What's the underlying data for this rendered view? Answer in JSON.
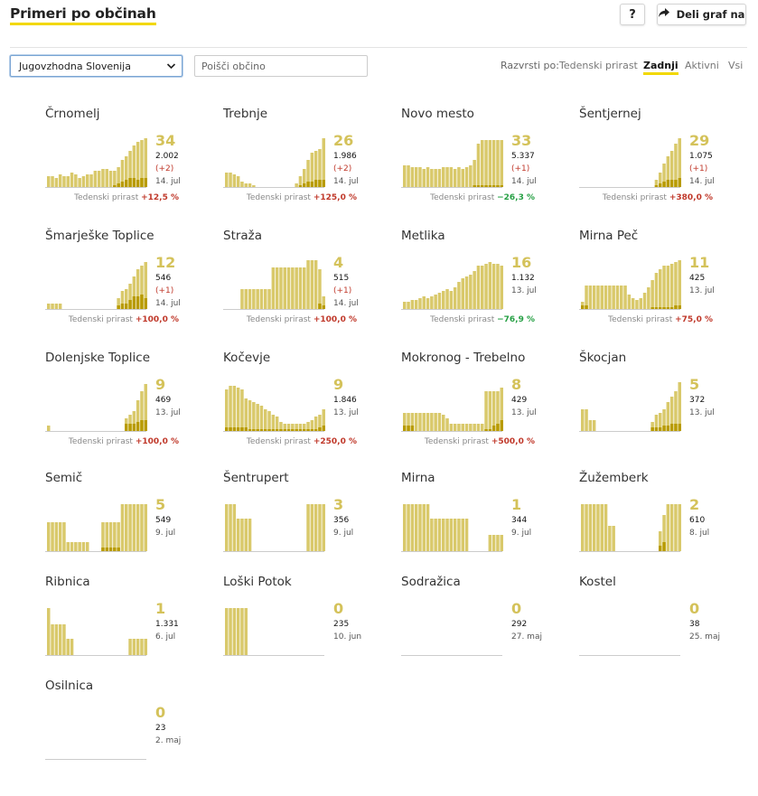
{
  "header": {
    "title": "Primeri po občinah",
    "help_label": "?",
    "share_label": "Deli graf na"
  },
  "controls": {
    "region_value": "Jugovzhodna Slovenija",
    "search_placeholder": "Poišči občino",
    "sort_label": "Razvrsti po:",
    "sort_options": [
      "Tedenski prirast",
      "Zadnji",
      "Aktivni",
      "Vsi"
    ],
    "sort_active": "Zadnji"
  },
  "colors": {
    "accent": "#f2d800",
    "bar_light": "#d9c96b",
    "bar_dark": "#b89b00",
    "positive_change": "#c0392b",
    "negative_change": "#27a045"
  },
  "icons": {
    "share": "share-arrow-icon",
    "select": "chevron-down-icon"
  },
  "weekly_label": "Tedenski prirast",
  "municipalities": [
    {
      "name": "Črnomelj",
      "active": "34",
      "total": "2.002",
      "new": "(+2)",
      "date": "14. jul",
      "weekly": "+12,5 %",
      "weekly_dir": "pos",
      "bars": [
        12,
        12,
        10,
        14,
        12,
        12,
        16,
        14,
        10,
        12,
        14,
        14,
        18,
        18,
        20,
        20,
        18,
        18,
        22,
        30,
        34,
        40,
        46,
        50,
        52,
        54
      ],
      "dark": [
        0,
        0,
        0,
        0,
        0,
        0,
        0,
        0,
        0,
        0,
        0,
        0,
        0,
        0,
        0,
        0,
        0,
        2,
        4,
        6,
        8,
        10,
        10,
        8,
        10,
        10
      ],
      "baseline_offset": 0
    },
    {
      "name": "Trebnje",
      "active": "26",
      "total": "1.986",
      "new": "(+2)",
      "date": "14. jul",
      "weekly": "+125,0 %",
      "weekly_dir": "pos",
      "bars": [
        16,
        16,
        14,
        12,
        6,
        4,
        4,
        2,
        0,
        0,
        0,
        0,
        0,
        0,
        0,
        0,
        0,
        0,
        4,
        12,
        20,
        30,
        38,
        40,
        42,
        54
      ],
      "dark": [
        0,
        0,
        0,
        0,
        0,
        0,
        0,
        0,
        0,
        0,
        0,
        0,
        0,
        0,
        0,
        0,
        0,
        0,
        0,
        2,
        4,
        6,
        6,
        8,
        8,
        8
      ],
      "baseline_offset": 0
    },
    {
      "name": "Novo mesto",
      "active": "33",
      "total": "5.337",
      "new": "(+1)",
      "date": "14. jul",
      "weekly": "−26,3 %",
      "weekly_dir": "neg",
      "bars": [
        24,
        24,
        22,
        22,
        22,
        20,
        22,
        20,
        20,
        20,
        22,
        22,
        22,
        20,
        22,
        20,
        22,
        24,
        30,
        48,
        52,
        52,
        52,
        52,
        52,
        52
      ],
      "dark": [
        0,
        0,
        0,
        0,
        0,
        0,
        0,
        0,
        0,
        0,
        0,
        0,
        0,
        0,
        0,
        0,
        0,
        0,
        2,
        2,
        2,
        2,
        2,
        2,
        2,
        2
      ],
      "baseline_offset": 0
    },
    {
      "name": "Šentjernej",
      "active": "29",
      "total": "1.075",
      "new": "(+1)",
      "date": "14. jul",
      "weekly": "+380,0 %",
      "weekly_dir": "pos",
      "bars": [
        0,
        0,
        0,
        0,
        0,
        0,
        0,
        0,
        0,
        0,
        0,
        0,
        0,
        0,
        0,
        0,
        0,
        0,
        0,
        8,
        16,
        26,
        34,
        40,
        48,
        54
      ],
      "dark": [
        0,
        0,
        0,
        0,
        0,
        0,
        0,
        0,
        0,
        0,
        0,
        0,
        0,
        0,
        0,
        0,
        0,
        0,
        0,
        2,
        4,
        6,
        8,
        8,
        8,
        10
      ],
      "baseline_offset": 0
    },
    {
      "name": "Šmarješke Toplice",
      "active": "12",
      "total": "546",
      "new": "(+1)",
      "date": "14. jul",
      "weekly": "+100,0 %",
      "weekly_dir": "pos",
      "bars": [
        6,
        6,
        6,
        6,
        0,
        0,
        0,
        0,
        0,
        0,
        0,
        0,
        0,
        0,
        0,
        0,
        0,
        0,
        12,
        20,
        22,
        28,
        36,
        44,
        48,
        52
      ],
      "dark": [
        0,
        0,
        0,
        0,
        0,
        0,
        0,
        0,
        0,
        0,
        0,
        0,
        0,
        0,
        0,
        0,
        0,
        0,
        4,
        6,
        6,
        10,
        14,
        14,
        16,
        12
      ],
      "baseline_offset": 0
    },
    {
      "name": "Straža",
      "active": "4",
      "total": "515",
      "new": "(+1)",
      "date": "14. jul",
      "weekly": "+100,0 %",
      "weekly_dir": "pos",
      "bars": [
        0,
        0,
        0,
        0,
        22,
        22,
        22,
        22,
        22,
        22,
        22,
        22,
        46,
        46,
        46,
        46,
        46,
        46,
        46,
        46,
        46,
        54,
        54,
        54,
        44,
        14
      ],
      "dark": [
        0,
        0,
        0,
        0,
        0,
        0,
        0,
        0,
        0,
        0,
        0,
        0,
        0,
        0,
        0,
        0,
        0,
        0,
        0,
        0,
        0,
        0,
        0,
        0,
        6,
        4
      ],
      "baseline_offset": 0
    },
    {
      "name": "Metlika",
      "active": "16",
      "total": "1.132",
      "new": "",
      "date": "13. jul",
      "weekly": "−76,9 %",
      "weekly_dir": "neg",
      "bars": [
        8,
        8,
        10,
        10,
        12,
        14,
        12,
        14,
        16,
        18,
        20,
        22,
        20,
        24,
        30,
        34,
        36,
        38,
        42,
        48,
        48,
        50,
        52,
        50,
        50,
        48
      ],
      "dark": [
        0,
        0,
        0,
        0,
        0,
        0,
        0,
        0,
        0,
        0,
        0,
        0,
        0,
        0,
        0,
        0,
        0,
        0,
        0,
        0,
        0,
        0,
        0,
        0,
        0,
        0
      ],
      "baseline_offset": 0
    },
    {
      "name": "Mirna Peč",
      "active": "11",
      "total": "425",
      "new": "",
      "date": "13. jul",
      "weekly": "+75,0 %",
      "weekly_dir": "pos",
      "bars": [
        8,
        26,
        26,
        26,
        26,
        26,
        26,
        26,
        26,
        26,
        26,
        26,
        16,
        12,
        10,
        12,
        18,
        24,
        32,
        40,
        44,
        48,
        48,
        50,
        52,
        54
      ],
      "dark": [
        4,
        4,
        0,
        0,
        0,
        0,
        0,
        0,
        0,
        0,
        0,
        0,
        0,
        0,
        0,
        0,
        0,
        0,
        2,
        2,
        2,
        2,
        2,
        2,
        4,
        4
      ],
      "baseline_offset": 0
    },
    {
      "name": "Dolenjske Toplice",
      "active": "9",
      "total": "469",
      "new": "",
      "date": "13. jul",
      "weekly": "+100,0 %",
      "weekly_dir": "pos",
      "bars": [
        6,
        0,
        0,
        0,
        0,
        0,
        0,
        0,
        0,
        0,
        0,
        0,
        0,
        0,
        0,
        0,
        0,
        0,
        0,
        0,
        14,
        18,
        22,
        34,
        44,
        52
      ],
      "dark": [
        0,
        0,
        0,
        0,
        0,
        0,
        0,
        0,
        0,
        0,
        0,
        0,
        0,
        0,
        0,
        0,
        0,
        0,
        0,
        0,
        8,
        8,
        8,
        10,
        12,
        12
      ],
      "baseline_offset": 0
    },
    {
      "name": "Kočevje",
      "active": "9",
      "total": "1.846",
      "new": "",
      "date": "13. jul",
      "weekly": "+250,0 %",
      "weekly_dir": "pos",
      "bars": [
        46,
        50,
        50,
        48,
        46,
        36,
        34,
        32,
        30,
        28,
        24,
        22,
        18,
        16,
        10,
        8,
        8,
        8,
        8,
        8,
        8,
        10,
        12,
        16,
        18,
        24
      ],
      "dark": [
        4,
        4,
        4,
        4,
        4,
        4,
        2,
        2,
        2,
        2,
        2,
        2,
        2,
        2,
        2,
        2,
        2,
        2,
        2,
        2,
        2,
        2,
        2,
        2,
        4,
        6
      ],
      "baseline_offset": 0
    },
    {
      "name": "Mokronog - Trebelno",
      "active": "8",
      "total": "429",
      "new": "",
      "date": "13. jul",
      "weekly": "+500,0 %",
      "weekly_dir": "pos",
      "bars": [
        20,
        20,
        20,
        20,
        20,
        20,
        20,
        20,
        20,
        20,
        18,
        14,
        8,
        8,
        8,
        8,
        8,
        8,
        8,
        8,
        8,
        44,
        44,
        44,
        44,
        48
      ],
      "dark": [
        6,
        6,
        6,
        0,
        0,
        0,
        0,
        0,
        0,
        0,
        0,
        0,
        0,
        0,
        0,
        0,
        0,
        0,
        0,
        0,
        0,
        2,
        2,
        6,
        8,
        12
      ],
      "baseline_offset": 0
    },
    {
      "name": "Škocjan",
      "active": "5",
      "total": "372",
      "new": "",
      "date": "13. jul",
      "weekly": "",
      "weekly_dir": "",
      "bars": [
        24,
        24,
        12,
        12,
        0,
        0,
        0,
        0,
        0,
        0,
        0,
        0,
        0,
        0,
        0,
        0,
        0,
        0,
        10,
        18,
        20,
        24,
        32,
        38,
        44,
        54
      ],
      "dark": [
        0,
        0,
        0,
        0,
        0,
        0,
        0,
        0,
        0,
        0,
        0,
        0,
        0,
        0,
        0,
        0,
        0,
        0,
        4,
        4,
        4,
        6,
        6,
        8,
        8,
        8
      ],
      "baseline_offset": 0
    },
    {
      "name": "Semič",
      "active": "5",
      "total": "549",
      "new": "",
      "date": "9. jul",
      "weekly": "",
      "weekly_dir": "",
      "bars": [
        32,
        32,
        32,
        32,
        32,
        10,
        10,
        10,
        10,
        10,
        10,
        0,
        0,
        0,
        32,
        32,
        32,
        32,
        32,
        52,
        52,
        52,
        52,
        52,
        52,
        52
      ],
      "dark": [
        0,
        0,
        0,
        0,
        0,
        0,
        0,
        0,
        0,
        0,
        0,
        0,
        0,
        0,
        4,
        4,
        4,
        4,
        4,
        0,
        0,
        0,
        0,
        0,
        0,
        0
      ],
      "baseline_offset": 0
    },
    {
      "name": "Šentrupert",
      "active": "3",
      "total": "356",
      "new": "",
      "date": "9. jul",
      "weekly": "",
      "weekly_dir": "",
      "bars": [
        52,
        52,
        52,
        36,
        36,
        36,
        36,
        0,
        0,
        0,
        0,
        0,
        0,
        0,
        0,
        0,
        0,
        0,
        0,
        0,
        0,
        52,
        52,
        52,
        52,
        52
      ],
      "dark": [
        0,
        0,
        0,
        0,
        0,
        0,
        0,
        0,
        0,
        0,
        0,
        0,
        0,
        0,
        0,
        0,
        0,
        0,
        0,
        0,
        0,
        0,
        0,
        0,
        0,
        0
      ],
      "baseline_offset": 0
    },
    {
      "name": "Mirna",
      "active": "1",
      "total": "344",
      "new": "",
      "date": "9. jul",
      "weekly": "",
      "weekly_dir": "",
      "bars": [
        52,
        52,
        52,
        52,
        52,
        52,
        52,
        36,
        36,
        36,
        36,
        36,
        36,
        36,
        36,
        36,
        36,
        0,
        0,
        0,
        0,
        0,
        18,
        18,
        18,
        18
      ],
      "dark": [
        0,
        0,
        0,
        0,
        0,
        0,
        0,
        0,
        0,
        0,
        0,
        0,
        0,
        0,
        0,
        0,
        0,
        0,
        0,
        0,
        0,
        0,
        0,
        0,
        0,
        0
      ],
      "baseline_offset": 0
    },
    {
      "name": "Žužemberk",
      "active": "2",
      "total": "610",
      "new": "",
      "date": "8. jul",
      "weekly": "",
      "weekly_dir": "",
      "bars": [
        52,
        52,
        52,
        52,
        52,
        52,
        52,
        28,
        28,
        0,
        0,
        0,
        0,
        0,
        0,
        0,
        0,
        0,
        0,
        0,
        22,
        40,
        52,
        52,
        52,
        52
      ],
      "dark": [
        0,
        0,
        0,
        0,
        0,
        0,
        0,
        0,
        0,
        0,
        0,
        0,
        0,
        0,
        0,
        0,
        0,
        0,
        0,
        0,
        6,
        10,
        0,
        0,
        0,
        0
      ],
      "baseline_offset": 0
    },
    {
      "name": "Ribnica",
      "active": "1",
      "total": "1.331",
      "new": "",
      "date": "6. jul",
      "weekly": "",
      "weekly_dir": "",
      "bars": [
        52,
        34,
        34,
        34,
        34,
        18,
        18,
        0,
        0,
        0,
        0,
        0,
        0,
        0,
        0,
        0,
        0,
        0,
        0,
        0,
        0,
        18,
        18,
        18,
        18,
        18
      ],
      "dark": [
        0,
        0,
        0,
        0,
        0,
        0,
        0,
        0,
        0,
        0,
        0,
        0,
        0,
        0,
        0,
        0,
        0,
        0,
        0,
        0,
        0,
        0,
        0,
        0,
        0,
        0
      ],
      "baseline_offset": 0
    },
    {
      "name": "Loški Potok",
      "active": "0",
      "total": "235",
      "new": "",
      "date": "10. jun",
      "weekly": "",
      "weekly_dir": "",
      "bars": [
        52,
        52,
        52,
        52,
        52,
        52,
        0,
        0,
        0,
        0,
        0,
        0,
        0,
        0,
        0,
        0,
        0,
        0,
        0,
        0,
        0,
        0,
        0,
        0,
        0,
        0
      ],
      "dark": [
        0,
        0,
        0,
        0,
        0,
        0,
        0,
        0,
        0,
        0,
        0,
        0,
        0,
        0,
        0,
        0,
        0,
        0,
        0,
        0,
        0,
        0,
        0,
        0,
        0,
        0
      ],
      "baseline_offset": 0
    },
    {
      "name": "Sodražica",
      "active": "0",
      "total": "292",
      "new": "",
      "date": "27. maj",
      "weekly": "",
      "weekly_dir": "",
      "bars": [],
      "dark": [],
      "baseline_offset": 0
    },
    {
      "name": "Kostel",
      "active": "0",
      "total": "38",
      "new": "",
      "date": "25. maj",
      "weekly": "",
      "weekly_dir": "",
      "bars": [],
      "dark": [],
      "baseline_offset": 0
    },
    {
      "name": "Osilnica",
      "active": "0",
      "total": "23",
      "new": "",
      "date": "2. maj",
      "weekly": "",
      "weekly_dir": "",
      "bars": [],
      "dark": [],
      "baseline_offset": 0
    }
  ]
}
